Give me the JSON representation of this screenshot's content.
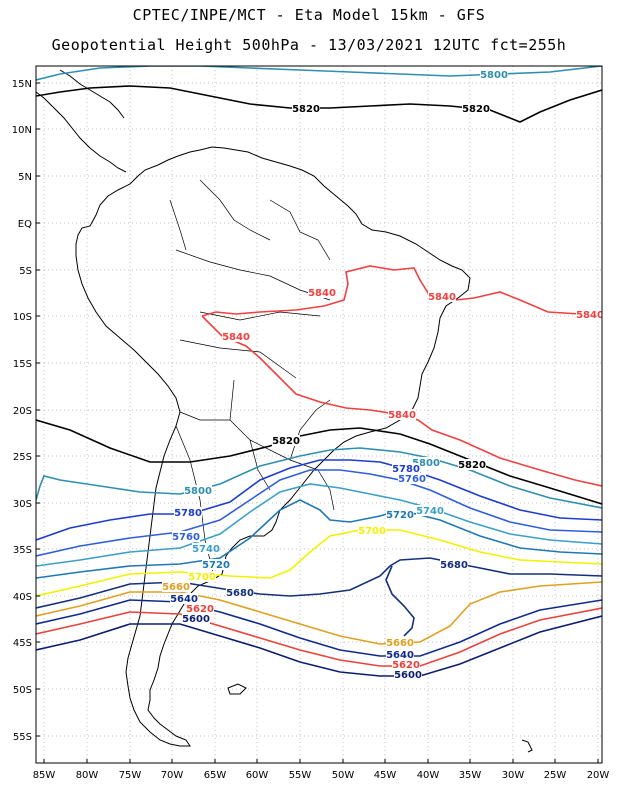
{
  "title_line1": "CPTEC/INPE/MCT -  Eta Model 15km - GFS",
  "title_line2": "Geopotential Height 500hPa - 13/03/2021 12UTC fct=255h",
  "lat_labels": [
    "15N",
    "10N",
    "5N",
    "EQ",
    "5S",
    "10S",
    "15S",
    "20S",
    "25S",
    "30S",
    "35S",
    "40S",
    "45S",
    "50S",
    "55S"
  ],
  "lon_labels": [
    "85W",
    "80W",
    "75W",
    "70W",
    "65W",
    "60W",
    "55W",
    "50W",
    "45W",
    "40W",
    "35W",
    "30W",
    "25W",
    "20W"
  ],
  "colors": {
    "c5600": "#0b1e6e",
    "c5620": "#e8433a",
    "c5640": "#102a8c",
    "c5660": "#e0a020",
    "c5680": "#14307a",
    "c5700": "#f2f200",
    "c5720": "#1e78b4",
    "c5740": "#3aa0c8",
    "c5760": "#2f5fd8",
    "c5780": "#1e3ccc",
    "c5800": "#2e8fb0",
    "c5820": "#000000",
    "c5840": "#f04040",
    "coast": "#000000",
    "grid": "#b0b0b0"
  },
  "contour_labels": [
    {
      "text": "5800",
      "color": "c5800"
    },
    {
      "text": "5820",
      "color": "c5820"
    },
    {
      "text": "5820",
      "color": "c5820"
    },
    {
      "text": "5840",
      "color": "c5840"
    },
    {
      "text": "5840",
      "color": "c5840"
    },
    {
      "text": "5840",
      "color": "c5840"
    },
    {
      "text": "5840",
      "color": "c5840"
    },
    {
      "text": "5840",
      "color": "c5840"
    },
    {
      "text": "5820",
      "color": "c5820"
    },
    {
      "text": "5820",
      "color": "c5820"
    },
    {
      "text": "5800",
      "color": "c5800"
    },
    {
      "text": "5780",
      "color": "c5780"
    },
    {
      "text": "5760",
      "color": "c5760"
    },
    {
      "text": "5800",
      "color": "c5800"
    },
    {
      "text": "5780",
      "color": "c5780"
    },
    {
      "text": "5760",
      "color": "c5760"
    },
    {
      "text": "5740",
      "color": "c5740"
    },
    {
      "text": "5720",
      "color": "c5720"
    },
    {
      "text": "5740",
      "color": "c5740"
    },
    {
      "text": "5720",
      "color": "c5720"
    },
    {
      "text": "5700",
      "color": "c5700"
    },
    {
      "text": "5700",
      "color": "c5700"
    },
    {
      "text": "5680",
      "color": "c5680"
    },
    {
      "text": "5680",
      "color": "c5680"
    },
    {
      "text": "5660",
      "color": "c5660"
    },
    {
      "text": "5640",
      "color": "c5640"
    },
    {
      "text": "5620",
      "color": "c5620"
    },
    {
      "text": "5600",
      "color": "c5600"
    },
    {
      "text": "5660",
      "color": "c5660"
    },
    {
      "text": "5640",
      "color": "c5640"
    },
    {
      "text": "5620",
      "color": "c5620"
    },
    {
      "text": "5600",
      "color": "c5600"
    }
  ]
}
